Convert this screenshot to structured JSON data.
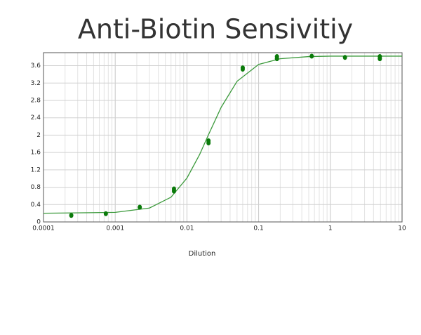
{
  "chart_data": {
    "type": "scatter",
    "title": "Anti-Biotin Sensivitiy",
    "x_label": "Dilution",
    "xscale": "log",
    "xlim": [
      0.0001,
      10
    ],
    "xticks": [
      0.0001,
      0.001,
      0.01,
      0.1,
      1,
      10
    ],
    "xminorticks": [
      0.0002,
      0.0003,
      0.0004,
      0.0005,
      0.0006,
      0.0007,
      0.0008,
      0.0009,
      0.002,
      0.003,
      0.004,
      0.005,
      0.006,
      0.007,
      0.008,
      0.009,
      0.02,
      0.03,
      0.04,
      0.05,
      0.06,
      0.07,
      0.08,
      0.09,
      0.2,
      0.3,
      0.4,
      0.5,
      0.6,
      0.7,
      0.8,
      0.9,
      2,
      3,
      4,
      5,
      6,
      7,
      8,
      9
    ],
    "ylim": [
      0,
      3.9
    ],
    "yticks": [
      0,
      0.4,
      0.8,
      1.2,
      1.6,
      2,
      2.4,
      2.8,
      3.2,
      3.6
    ],
    "grid": true,
    "series": [
      {
        "type": "scatter",
        "color": "#0a7a0a",
        "x": [
          0.000244,
          0.00074,
          0.0022,
          0.0066,
          0.0066,
          0.02,
          0.02,
          0.06,
          0.06,
          0.18,
          0.18,
          0.55,
          1.6,
          4.9,
          4.9
        ],
        "values": [
          0.15,
          0.19,
          0.34,
          0.76,
          0.71,
          1.87,
          1.82,
          3.55,
          3.52,
          3.81,
          3.76,
          3.82,
          3.79,
          3.81,
          3.76
        ]
      },
      {
        "type": "line",
        "color": "#3c9a3c",
        "x": [
          0.0001,
          0.001,
          0.003,
          0.006,
          0.01,
          0.015,
          0.02,
          0.03,
          0.05,
          0.1,
          0.2,
          0.5,
          1,
          10
        ],
        "values": [
          0.2,
          0.22,
          0.32,
          0.57,
          1.01,
          1.55,
          2.01,
          2.64,
          3.24,
          3.63,
          3.76,
          3.81,
          3.82,
          3.82
        ]
      }
    ]
  }
}
